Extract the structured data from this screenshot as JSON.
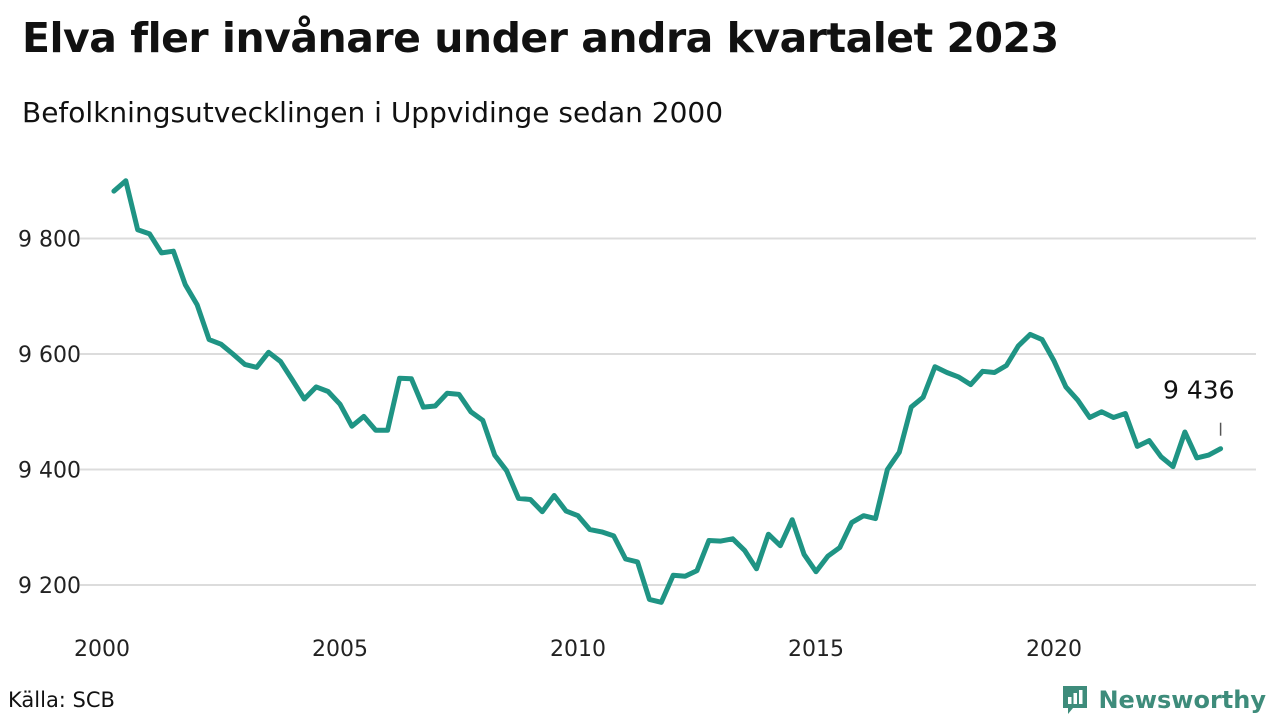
{
  "header": {
    "title": "Elva fler invånare under andra kvartalet 2023",
    "subtitle": "Befolkningsutvecklingen i Uppvidinge sedan 2000"
  },
  "footer": {
    "source": "Källa: SCB",
    "brand": "Newsworthy",
    "brand_color": "#3e8c7b"
  },
  "chart_data": {
    "type": "line",
    "title": "Elva fler invånare under andra kvartalet 2023",
    "subtitle": "Befolkningsutvecklingen i Uppvidinge sedan 2000",
    "xlabel": "",
    "ylabel": "",
    "xlim": [
      2000,
      2023.75
    ],
    "ylim": [
      9130,
      9930
    ],
    "x_ticks": [
      2000,
      2005,
      2010,
      2015,
      2020
    ],
    "x_tick_labels": [
      "2000",
      "2005",
      "2010",
      "2015",
      "2020"
    ],
    "y_ticks": [
      9200,
      9400,
      9600,
      9800
    ],
    "y_tick_labels": [
      "9 200",
      "9 400",
      "9 600",
      "9 800"
    ],
    "grid": "horizontal",
    "line_color": "#1f9484",
    "annotation": {
      "label": "9 436",
      "value": 9436
    },
    "series": [
      {
        "name": "",
        "x_start": 2000.25,
        "x_step": 0.25,
        "values": [
          9882,
          9900,
          9815,
          9808,
          9775,
          9778,
          9720,
          9685,
          9625,
          9617,
          9600,
          9582,
          9577,
          9603,
          9587,
          9555,
          9522,
          9543,
          9535,
          9513,
          9475,
          9492,
          9468,
          9468,
          9558,
          9557,
          9508,
          9510,
          9532,
          9530,
          9500,
          9485,
          9425,
          9398,
          9350,
          9348,
          9327,
          9355,
          9328,
          9320,
          9296,
          9292,
          9285,
          9245,
          9240,
          9175,
          9170,
          9217,
          9215,
          9225,
          9277,
          9276,
          9280,
          9260,
          9228,
          9288,
          9268,
          9313,
          9253,
          9223,
          9250,
          9265,
          9308,
          9320,
          9315,
          9400,
          9430,
          9508,
          9525,
          9578,
          9568,
          9560,
          9547,
          9570,
          9568,
          9580,
          9614,
          9634,
          9625,
          9588,
          9543,
          9520,
          9490,
          9500,
          9490,
          9497,
          9440,
          9450,
          9422,
          9405,
          9465,
          9420,
          9425,
          9436
        ]
      }
    ]
  }
}
